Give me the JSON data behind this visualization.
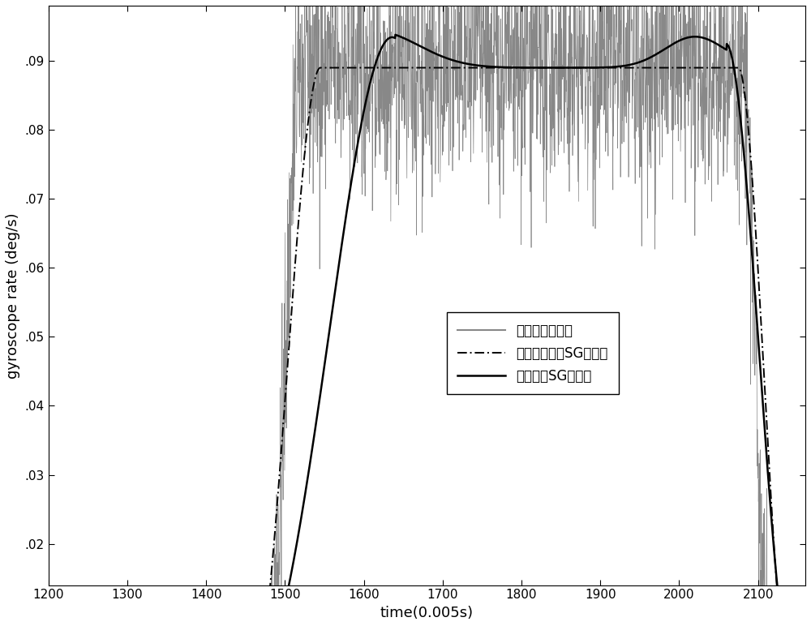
{
  "xlim": [
    1200,
    2160
  ],
  "ylim": [
    0.014,
    0.098
  ],
  "yticks": [
    0.02,
    0.03,
    0.04,
    0.05,
    0.06,
    0.07,
    0.08,
    0.09
  ],
  "xticks": [
    1200,
    1300,
    1400,
    1500,
    1600,
    1700,
    1800,
    1900,
    2000,
    2100
  ],
  "xlabel": "time(0.005s)",
  "ylabel": "gyroscope rate (deg/s)",
  "noisy_color": "#888888",
  "smooth1_color": "#000000",
  "smooth2_color": "#000000",
  "legend_labels": [
    "原始陀螺仪信号",
    "自适应多尺度SG滤波器",
    "固定窗长SG滤波器"
  ],
  "background_color": "#ffffff",
  "figsize": [
    10.0,
    7.72
  ],
  "dpi": 100
}
